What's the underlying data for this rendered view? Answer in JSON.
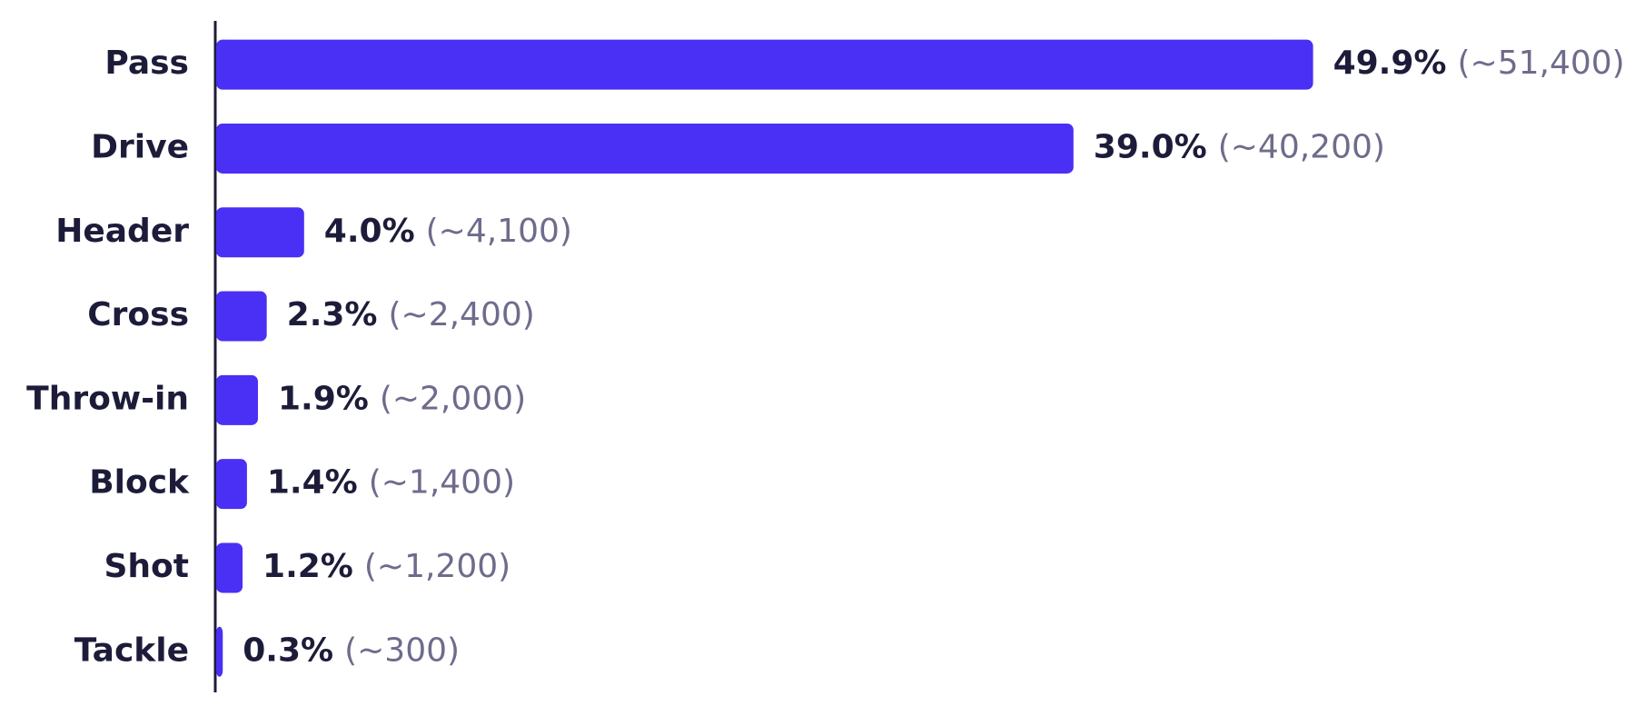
{
  "chart_data": {
    "type": "hbar",
    "categories": [
      "Pass",
      "Drive",
      "Header",
      "Cross",
      "Throw-in",
      "Block",
      "Shot",
      "Tackle"
    ],
    "values": [
      49.9,
      39.0,
      4.0,
      2.3,
      1.9,
      1.4,
      1.2,
      0.3
    ],
    "value_labels": [
      "49.9%",
      "39.0%",
      "4.0%",
      "2.3%",
      "1.9%",
      "1.4%",
      "1.2%",
      "0.3%"
    ],
    "count_labels": [
      "(~51,400)",
      "(~40,200)",
      "(~4,100)",
      "(~2,400)",
      "(~2,000)",
      "(~1,400)",
      "(~1,200)",
      "(~300)"
    ],
    "color": "#4a2ff5",
    "xlim": [
      0,
      50
    ]
  }
}
